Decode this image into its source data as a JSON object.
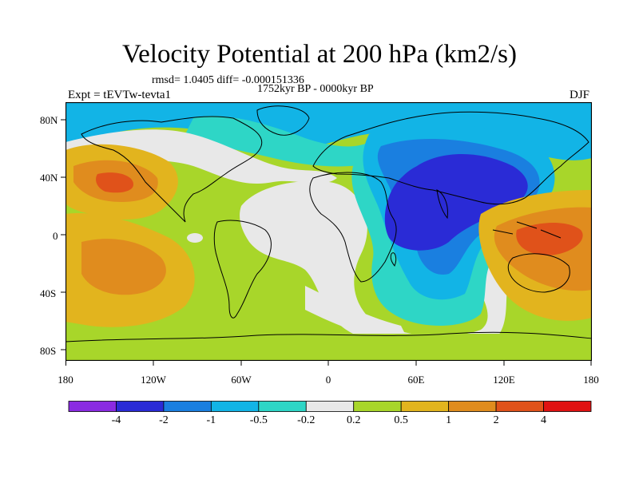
{
  "title": "Velocity Potential at 200 hPa (km2/s)",
  "stats": "rmsd= 1.0405 diff= -0.000151336",
  "period": "1752kyr BP - 0000kyr BP",
  "experiment": "Expt = tEVTw-tevta1",
  "season": "DJF",
  "y_axis_labels": [
    "80N",
    "40N",
    "0",
    "40S",
    "80S"
  ],
  "x_axis_labels": [
    "180",
    "120W",
    "60W",
    "0",
    "60E",
    "120E",
    "180"
  ],
  "colorbar": {
    "labels": [
      "-4",
      "-2",
      "-1",
      "-0.5",
      "-0.2",
      "0.2",
      "0.5",
      "1",
      "2",
      "4"
    ],
    "colors": [
      "#8a2be2",
      "#2a2bd6",
      "#1a7fe0",
      "#12b4e6",
      "#2ed6c6",
      "#e8e8e8",
      "#a8d62a",
      "#e2b41e",
      "#e08c1e",
      "#e0521a",
      "#e01212"
    ]
  },
  "field_colors": {
    "strong_negative": "#2a2bd6",
    "negative": "#1a7fe0",
    "weak_negative": "#12b4e6",
    "slight_negative": "#2ed6c6",
    "neutral": "#e8e8e8",
    "slight_positive": "#a8d62a",
    "positive": "#e2b41e",
    "strong_positive": "#e08c1e",
    "very_positive": "#e0521a"
  }
}
